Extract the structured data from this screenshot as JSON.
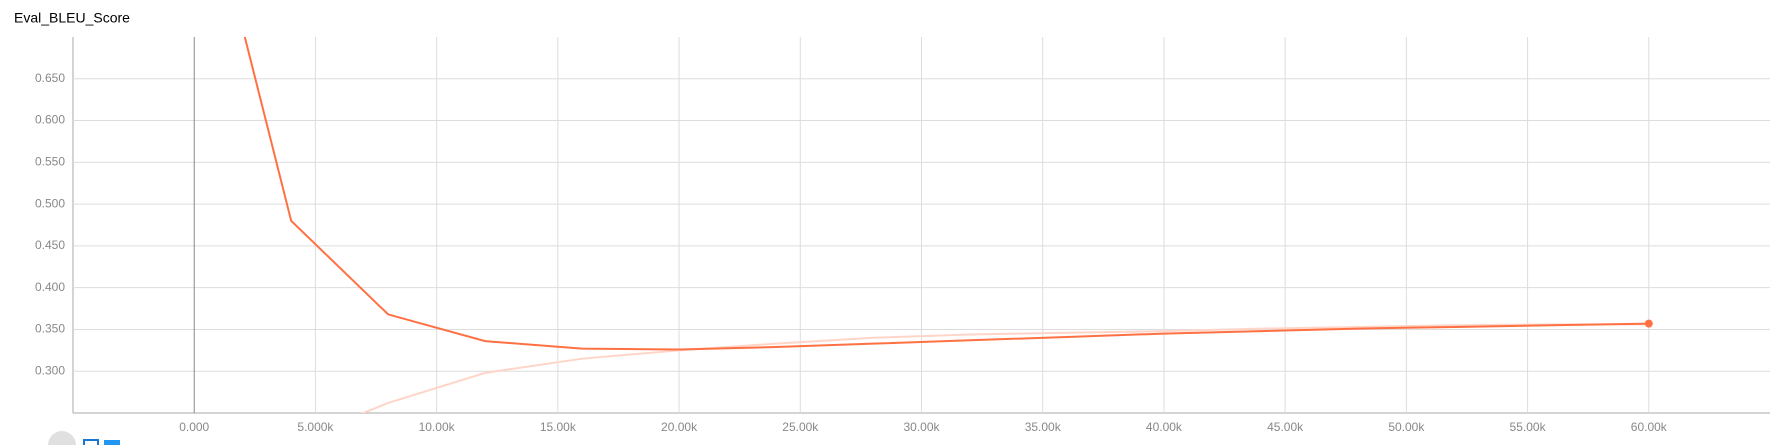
{
  "chart_data": {
    "type": "line",
    "title": "Eval_BLEU_Score",
    "x": [
      0,
      4000,
      8000,
      12000,
      16000,
      20000,
      24000,
      28000,
      32000,
      36000,
      40000,
      44000,
      48000,
      52000,
      56000,
      60000
    ],
    "series": [
      {
        "color": "#ff7043",
        "values": [
          0.94,
          0.48,
          0.368,
          0.336,
          0.327,
          0.326,
          0.329,
          0.333,
          0.337,
          0.341,
          0.345,
          0.348,
          0.351,
          0.353,
          0.355,
          0.357
        ]
      },
      {
        "color": "#ffd5c8",
        "values": [
          null,
          0.215,
          0.262,
          0.298,
          0.315,
          0.325,
          0.333,
          0.34,
          0.344,
          0.346,
          0.348,
          0.351,
          0.353,
          0.355,
          0.356,
          0.356
        ]
      }
    ],
    "xlim": [
      -5000,
      65000
    ],
    "xticks": [
      {
        "value": 0,
        "label": "0.000"
      },
      {
        "value": 5000,
        "label": "5.000k"
      },
      {
        "value": 10000,
        "label": "10.00k"
      },
      {
        "value": 15000,
        "label": "15.00k"
      },
      {
        "value": 20000,
        "label": "20.00k"
      },
      {
        "value": 25000,
        "label": "25.00k"
      },
      {
        "value": 30000,
        "label": "30.00k"
      },
      {
        "value": 35000,
        "label": "35.00k"
      },
      {
        "value": 40000,
        "label": "40.00k"
      },
      {
        "value": 45000,
        "label": "45.00k"
      },
      {
        "value": 50000,
        "label": "50.00k"
      },
      {
        "value": 55000,
        "label": "55.00k"
      },
      {
        "value": 60000,
        "label": "60.00k"
      }
    ],
    "ylim": [
      0.25,
      0.7
    ],
    "yticks": [
      {
        "value": 0.3,
        "label": "0.300"
      },
      {
        "value": 0.35,
        "label": "0.350"
      },
      {
        "value": 0.4,
        "label": "0.400"
      },
      {
        "value": 0.45,
        "label": "0.450"
      },
      {
        "value": 0.5,
        "label": "0.500"
      },
      {
        "value": 0.55,
        "label": "0.550"
      },
      {
        "value": 0.6,
        "label": "0.600"
      },
      {
        "value": 0.65,
        "label": "0.650"
      }
    ],
    "grid": true
  }
}
